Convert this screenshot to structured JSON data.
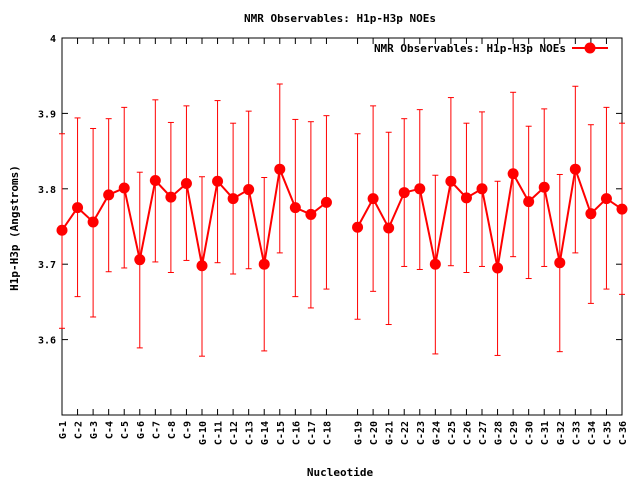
{
  "chart_data": {
    "type": "line",
    "title": "NMR Observables: H1p-H3p NOEs",
    "xlabel": "Nucleotide",
    "ylabel": "H1p-H3p (Angstroms)",
    "ylim": [
      3.5,
      4.0
    ],
    "yticks": [
      "3.6",
      "3.7",
      "3.8",
      "3.9",
      "4"
    ],
    "legend_position": "top-right",
    "series": [
      {
        "name": "NMR Observables: H1p-H3p NOEs",
        "color": "#ff0000",
        "segments": [
          {
            "categories": [
              "G-1",
              "C-2",
              "G-3",
              "C-4",
              "C-5",
              "G-6",
              "C-7",
              "C-8",
              "C-9",
              "G-10",
              "C-11",
              "C-12",
              "C-13",
              "G-14",
              "C-15",
              "C-16",
              "C-17",
              "C-18"
            ],
            "values": [
              3.745,
              3.775,
              3.756,
              3.792,
              3.801,
              3.706,
              3.811,
              3.789,
              3.807,
              3.698,
              3.81,
              3.787,
              3.799,
              3.7,
              3.826,
              3.775,
              3.766,
              3.782
            ],
            "err_low": [
              3.615,
              3.657,
              3.63,
              3.69,
              3.695,
              3.589,
              3.703,
              3.689,
              3.705,
              3.578,
              3.702,
              3.687,
              3.694,
              3.585,
              3.715,
              3.657,
              3.642,
              3.667
            ],
            "err_high": [
              3.873,
              3.894,
              3.88,
              3.893,
              3.908,
              3.822,
              3.918,
              3.888,
              3.91,
              3.816,
              3.917,
              3.887,
              3.903,
              3.815,
              3.939,
              3.892,
              3.889,
              3.897
            ]
          },
          {
            "categories": [
              "G-19",
              "C-20",
              "G-21",
              "C-22",
              "C-23",
              "G-24",
              "C-25",
              "C-26",
              "C-27",
              "G-28",
              "C-29",
              "C-30",
              "C-31",
              "G-32",
              "C-33",
              "C-34",
              "C-35",
              "C-36"
            ],
            "values": [
              3.749,
              3.787,
              3.748,
              3.795,
              3.8,
              3.7,
              3.81,
              3.788,
              3.8,
              3.695,
              3.82,
              3.783,
              3.802,
              3.702,
              3.826,
              3.767,
              3.787,
              3.773
            ],
            "err_low": [
              3.627,
              3.664,
              3.62,
              3.697,
              3.693,
              3.581,
              3.698,
              3.689,
              3.697,
              3.579,
              3.71,
              3.681,
              3.697,
              3.584,
              3.715,
              3.648,
              3.667,
              3.66
            ],
            "err_high": [
              3.873,
              3.91,
              3.875,
              3.893,
              3.905,
              3.818,
              3.921,
              3.887,
              3.902,
              3.81,
              3.928,
              3.883,
              3.906,
              3.819,
              3.936,
              3.885,
              3.908,
              3.887
            ]
          }
        ]
      }
    ]
  }
}
